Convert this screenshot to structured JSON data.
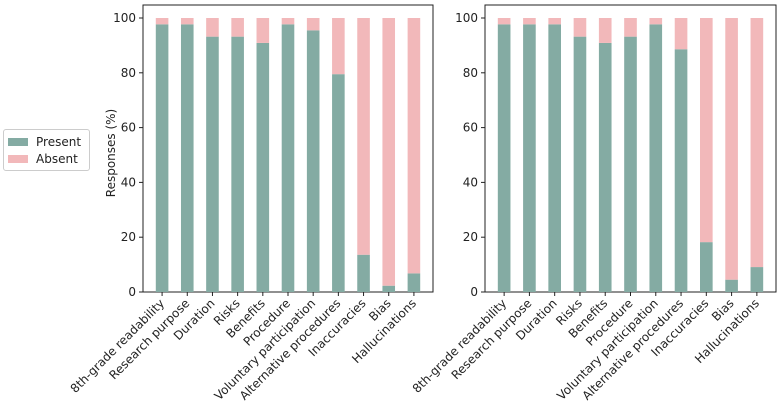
{
  "legend": {
    "present_label": "Present",
    "absent_label": "Absent"
  },
  "colors": {
    "present": "#84aba3",
    "absent": "#f2b8ba"
  },
  "chart_data": [
    {
      "type": "bar",
      "stacked": true,
      "panel": "left",
      "ylabel": "Responses (%)",
      "ylim": [
        0,
        100
      ],
      "yticks": [
        0,
        20,
        40,
        60,
        80,
        100
      ],
      "categories": [
        "8th-grade readability",
        "Research purpose",
        "Duration",
        "Risks",
        "Benefits",
        "Procedure",
        "Voluntary participation",
        "Alternative procedures",
        "Inaccuracies",
        "Bias",
        "Hallucinations"
      ],
      "series": [
        {
          "name": "Present",
          "values": [
            97.7,
            97.7,
            93.2,
            93.2,
            90.9,
            97.7,
            95.5,
            79.5,
            13.6,
            2.3,
            6.8
          ]
        },
        {
          "name": "Absent",
          "values": [
            2.3,
            2.3,
            6.8,
            6.8,
            9.1,
            2.3,
            4.5,
            20.5,
            86.4,
            97.7,
            93.2
          ]
        }
      ]
    },
    {
      "type": "bar",
      "stacked": true,
      "panel": "right",
      "ylabel": "",
      "ylim": [
        0,
        100
      ],
      "yticks": [
        0,
        20,
        40,
        60,
        80,
        100
      ],
      "categories": [
        "8th-grade readability",
        "Research purpose",
        "Duration",
        "Risks",
        "Benefits",
        "Procedure",
        "Voluntary participation",
        "Alternative procedures",
        "Inaccuracies",
        "Bias",
        "Hallucinations"
      ],
      "series": [
        {
          "name": "Present",
          "values": [
            97.7,
            97.7,
            97.7,
            93.2,
            90.9,
            93.2,
            97.7,
            88.6,
            18.2,
            4.5,
            9.1
          ]
        },
        {
          "name": "Absent",
          "values": [
            2.3,
            2.3,
            2.3,
            6.8,
            9.1,
            6.8,
            2.3,
            11.4,
            81.8,
            95.5,
            90.9
          ]
        }
      ]
    }
  ]
}
